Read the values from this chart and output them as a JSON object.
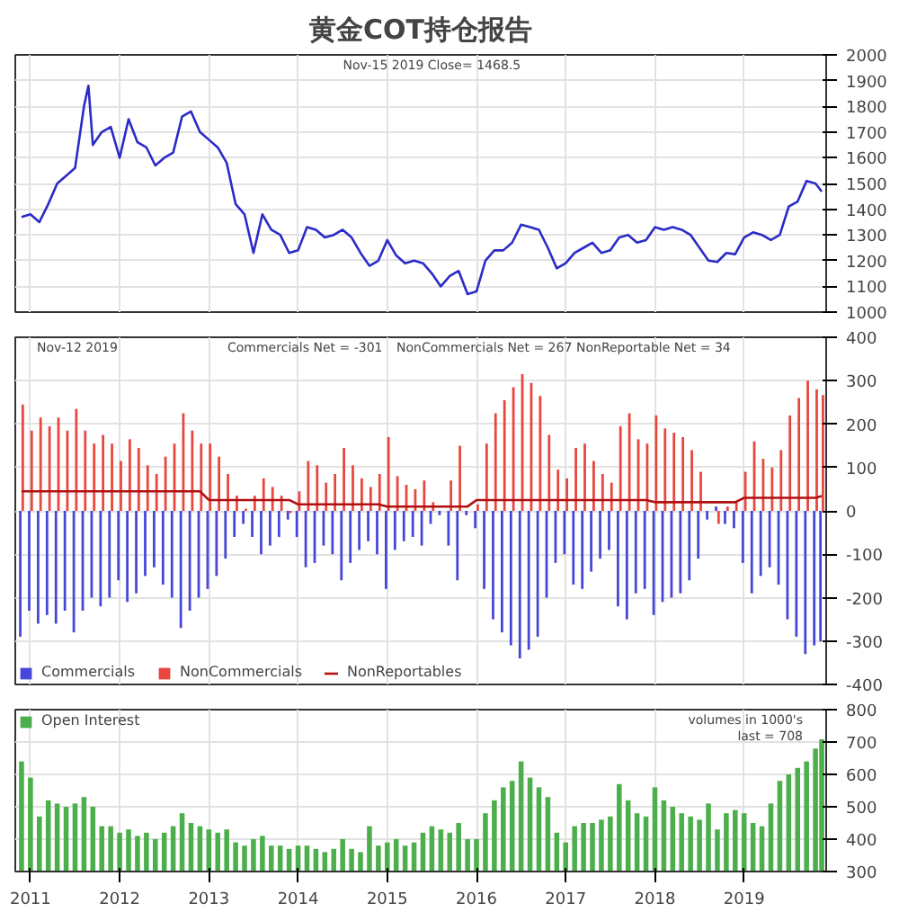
{
  "chart_data": [
    {
      "type": "line",
      "title": "黄金COT持仓报告",
      "annotations": [
        "Nov-15  2019   Close= 1468.5"
      ],
      "xlim": [
        2010.83,
        2019.92
      ],
      "xticks": [
        2011,
        2012,
        2013,
        2014,
        2015,
        2016,
        2017,
        2018,
        2019
      ],
      "ylim": [
        1000,
        2000
      ],
      "yticks": [
        1000,
        1100,
        1200,
        1300,
        1400,
        1500,
        1600,
        1700,
        1800,
        1900,
        2000
      ],
      "grid": true,
      "tick_labels": "y",
      "series": [
        {
          "color": "#2b2bc8",
          "x": [
            2010.9,
            2011.0,
            2011.1,
            2011.2,
            2011.3,
            2011.4,
            2011.5,
            2011.6,
            2011.65,
            2011.7,
            2011.8,
            2011.9,
            2012.0,
            2012.1,
            2012.2,
            2012.3,
            2012.4,
            2012.5,
            2012.6,
            2012.7,
            2012.8,
            2012.9,
            2013.0,
            2013.1,
            2013.2,
            2013.3,
            2013.4,
            2013.5,
            2013.6,
            2013.7,
            2013.8,
            2013.9,
            2014.0,
            2014.1,
            2014.2,
            2014.3,
            2014.4,
            2014.5,
            2014.6,
            2014.7,
            2014.8,
            2014.9,
            2015.0,
            2015.1,
            2015.2,
            2015.3,
            2015.4,
            2015.5,
            2015.6,
            2015.7,
            2015.8,
            2015.9,
            2016.0,
            2016.1,
            2016.2,
            2016.3,
            2016.4,
            2016.5,
            2016.6,
            2016.7,
            2016.8,
            2016.9,
            2017.0,
            2017.1,
            2017.2,
            2017.3,
            2017.4,
            2017.5,
            2017.6,
            2017.7,
            2017.8,
            2017.9,
            2018.0,
            2018.1,
            2018.2,
            2018.3,
            2018.4,
            2018.5,
            2018.6,
            2018.7,
            2018.8,
            2018.9,
            2019.0,
            2019.1,
            2019.2,
            2019.3,
            2019.4,
            2019.5,
            2019.6,
            2019.7,
            2019.8,
            2019.87
          ],
          "values": [
            1370,
            1380,
            1350,
            1420,
            1500,
            1530,
            1560,
            1800,
            1880,
            1650,
            1700,
            1720,
            1600,
            1750,
            1660,
            1640,
            1570,
            1600,
            1620,
            1760,
            1780,
            1700,
            1670,
            1640,
            1580,
            1420,
            1380,
            1230,
            1380,
            1320,
            1300,
            1230,
            1240,
            1330,
            1320,
            1290,
            1300,
            1320,
            1290,
            1230,
            1180,
            1200,
            1280,
            1220,
            1190,
            1200,
            1190,
            1150,
            1100,
            1140,
            1160,
            1070,
            1080,
            1200,
            1240,
            1240,
            1270,
            1340,
            1330,
            1320,
            1250,
            1170,
            1190,
            1230,
            1250,
            1270,
            1230,
            1240,
            1290,
            1300,
            1270,
            1280,
            1330,
            1320,
            1330,
            1320,
            1300,
            1250,
            1200,
            1195,
            1230,
            1225,
            1290,
            1310,
            1300,
            1280,
            1300,
            1410,
            1430,
            1510,
            1500,
            1468.5
          ]
        }
      ]
    },
    {
      "type": "bar",
      "annotations": [
        "Nov-12  2019",
        "Commercials Net = -301",
        "NonCommercials Net = 267",
        "NonReportable Net = 34"
      ],
      "x": [
        2010.9,
        2011.0,
        2011.1,
        2011.2,
        2011.3,
        2011.4,
        2011.5,
        2011.6,
        2011.7,
        2011.8,
        2011.9,
        2012.0,
        2012.1,
        2012.2,
        2012.3,
        2012.4,
        2012.5,
        2012.6,
        2012.7,
        2012.8,
        2012.9,
        2013.0,
        2013.1,
        2013.2,
        2013.3,
        2013.4,
        2013.5,
        2013.6,
        2013.7,
        2013.8,
        2013.9,
        2014.0,
        2014.1,
        2014.2,
        2014.3,
        2014.4,
        2014.5,
        2014.6,
        2014.7,
        2014.8,
        2014.9,
        2015.0,
        2015.1,
        2015.2,
        2015.3,
        2015.4,
        2015.5,
        2015.6,
        2015.7,
        2015.8,
        2015.9,
        2016.0,
        2016.1,
        2016.2,
        2016.3,
        2016.4,
        2016.5,
        2016.6,
        2016.7,
        2016.8,
        2016.9,
        2017.0,
        2017.1,
        2017.2,
        2017.3,
        2017.4,
        2017.5,
        2017.6,
        2017.7,
        2017.8,
        2017.9,
        2018.0,
        2018.1,
        2018.2,
        2018.3,
        2018.4,
        2018.5,
        2018.6,
        2018.7,
        2018.8,
        2018.9,
        2019.0,
        2019.1,
        2019.2,
        2019.3,
        2019.4,
        2019.5,
        2019.6,
        2019.7,
        2019.8,
        2019.87
      ],
      "xlim": [
        2010.83,
        2019.92
      ],
      "xticks": [
        2011,
        2012,
        2013,
        2014,
        2015,
        2016,
        2017,
        2018,
        2019
      ],
      "ylim": [
        -400,
        400
      ],
      "yticks": [
        -400,
        -300,
        -200,
        -100,
        0,
        100,
        200,
        300,
        400
      ],
      "grid": true,
      "tick_labels": "y",
      "legend": "bottom left",
      "series": [
        {
          "name": "Commercials",
          "color": "#4646d8",
          "values": [
            -290,
            -230,
            -260,
            -240,
            -260,
            -230,
            -280,
            -230,
            -200,
            -220,
            -200,
            -160,
            -210,
            -190,
            -150,
            -130,
            -170,
            -200,
            -270,
            -230,
            -200,
            -180,
            -150,
            -110,
            -60,
            -30,
            -60,
            -100,
            -80,
            -60,
            -20,
            -60,
            -130,
            -120,
            -80,
            -100,
            -160,
            -120,
            -90,
            -70,
            -100,
            -180,
            -90,
            -70,
            -60,
            -80,
            -30,
            -10,
            -80,
            -160,
            -10,
            -40,
            -180,
            -250,
            -280,
            -310,
            -340,
            -320,
            -290,
            -200,
            -120,
            -100,
            -170,
            -180,
            -140,
            -110,
            -90,
            -220,
            -250,
            -190,
            -180,
            -240,
            -210,
            -200,
            -190,
            -160,
            -110,
            -20,
            10,
            -30,
            -40,
            -120,
            -190,
            -150,
            -130,
            -170,
            -250,
            -290,
            -330,
            -310,
            -301
          ]
        },
        {
          "name": "NonCommercials",
          "color": "#e8463f",
          "values": [
            245,
            185,
            215,
            195,
            215,
            185,
            235,
            185,
            155,
            175,
            155,
            115,
            165,
            145,
            105,
            85,
            125,
            155,
            225,
            185,
            155,
            155,
            125,
            85,
            35,
            5,
            35,
            75,
            55,
            35,
            -5,
            45,
            115,
            105,
            65,
            85,
            145,
            105,
            75,
            55,
            85,
            170,
            80,
            60,
            50,
            70,
            20,
            0,
            70,
            150,
            0,
            15,
            155,
            225,
            255,
            285,
            315,
            295,
            265,
            175,
            95,
            75,
            145,
            155,
            115,
            85,
            65,
            195,
            225,
            165,
            155,
            220,
            190,
            180,
            170,
            140,
            90,
            0,
            -30,
            10,
            20,
            90,
            160,
            120,
            100,
            140,
            220,
            260,
            300,
            280,
            267
          ]
        },
        {
          "name": "NonReportables",
          "type": "line",
          "color": "#b01010",
          "values": [
            45,
            45,
            45,
            45,
            45,
            45,
            45,
            45,
            45,
            45,
            45,
            45,
            45,
            45,
            45,
            45,
            45,
            45,
            45,
            45,
            45,
            25,
            25,
            25,
            25,
            25,
            25,
            25,
            25,
            25,
            25,
            15,
            15,
            15,
            15,
            15,
            15,
            15,
            15,
            15,
            15,
            10,
            10,
            10,
            10,
            10,
            10,
            10,
            10,
            10,
            10,
            25,
            25,
            25,
            25,
            25,
            25,
            25,
            25,
            25,
            25,
            25,
            25,
            25,
            25,
            25,
            25,
            25,
            25,
            25,
            25,
            20,
            20,
            20,
            20,
            20,
            20,
            20,
            20,
            20,
            20,
            30,
            30,
            30,
            30,
            30,
            30,
            30,
            30,
            30,
            34
          ]
        }
      ]
    },
    {
      "type": "bar",
      "annotations": [
        "volumes in 1000's",
        "last = 708"
      ],
      "x": [
        2010.9,
        2011.0,
        2011.1,
        2011.2,
        2011.3,
        2011.4,
        2011.5,
        2011.6,
        2011.7,
        2011.8,
        2011.9,
        2012.0,
        2012.1,
        2012.2,
        2012.3,
        2012.4,
        2012.5,
        2012.6,
        2012.7,
        2012.8,
        2012.9,
        2013.0,
        2013.1,
        2013.2,
        2013.3,
        2013.4,
        2013.5,
        2013.6,
        2013.7,
        2013.8,
        2013.9,
        2014.0,
        2014.1,
        2014.2,
        2014.3,
        2014.4,
        2014.5,
        2014.6,
        2014.7,
        2014.8,
        2014.9,
        2015.0,
        2015.1,
        2015.2,
        2015.3,
        2015.4,
        2015.5,
        2015.6,
        2015.7,
        2015.8,
        2015.9,
        2016.0,
        2016.1,
        2016.2,
        2016.3,
        2016.4,
        2016.5,
        2016.6,
        2016.7,
        2016.8,
        2016.9,
        2017.0,
        2017.1,
        2017.2,
        2017.3,
        2017.4,
        2017.5,
        2017.6,
        2017.7,
        2017.8,
        2017.9,
        2018.0,
        2018.1,
        2018.2,
        2018.3,
        2018.4,
        2018.5,
        2018.6,
        2018.7,
        2018.8,
        2018.9,
        2019.0,
        2019.1,
        2019.2,
        2019.3,
        2019.4,
        2019.5,
        2019.6,
        2019.7,
        2019.8,
        2019.87
      ],
      "xlim": [
        2010.83,
        2019.92
      ],
      "xticks": [
        2011,
        2012,
        2013,
        2014,
        2015,
        2016,
        2017,
        2018,
        2019
      ],
      "ylim": [
        300,
        800
      ],
      "yticks": [
        300,
        400,
        500,
        600,
        700,
        800
      ],
      "grid": true,
      "legend": "top left",
      "series": [
        {
          "name": "Open Interest",
          "color": "#4caf4c",
          "values": [
            640,
            590,
            470,
            520,
            510,
            500,
            510,
            530,
            500,
            440,
            440,
            420,
            430,
            410,
            420,
            400,
            420,
            440,
            480,
            450,
            440,
            430,
            420,
            430,
            390,
            380,
            400,
            410,
            380,
            380,
            370,
            380,
            380,
            370,
            360,
            370,
            400,
            370,
            360,
            440,
            380,
            390,
            400,
            380,
            390,
            420,
            440,
            430,
            420,
            450,
            400,
            400,
            480,
            520,
            560,
            580,
            640,
            590,
            560,
            530,
            420,
            390,
            440,
            450,
            450,
            460,
            470,
            570,
            520,
            480,
            470,
            560,
            520,
            500,
            480,
            470,
            460,
            510,
            430,
            480,
            490,
            480,
            450,
            440,
            510,
            580,
            600,
            620,
            640,
            680,
            708
          ]
        }
      ]
    }
  ]
}
